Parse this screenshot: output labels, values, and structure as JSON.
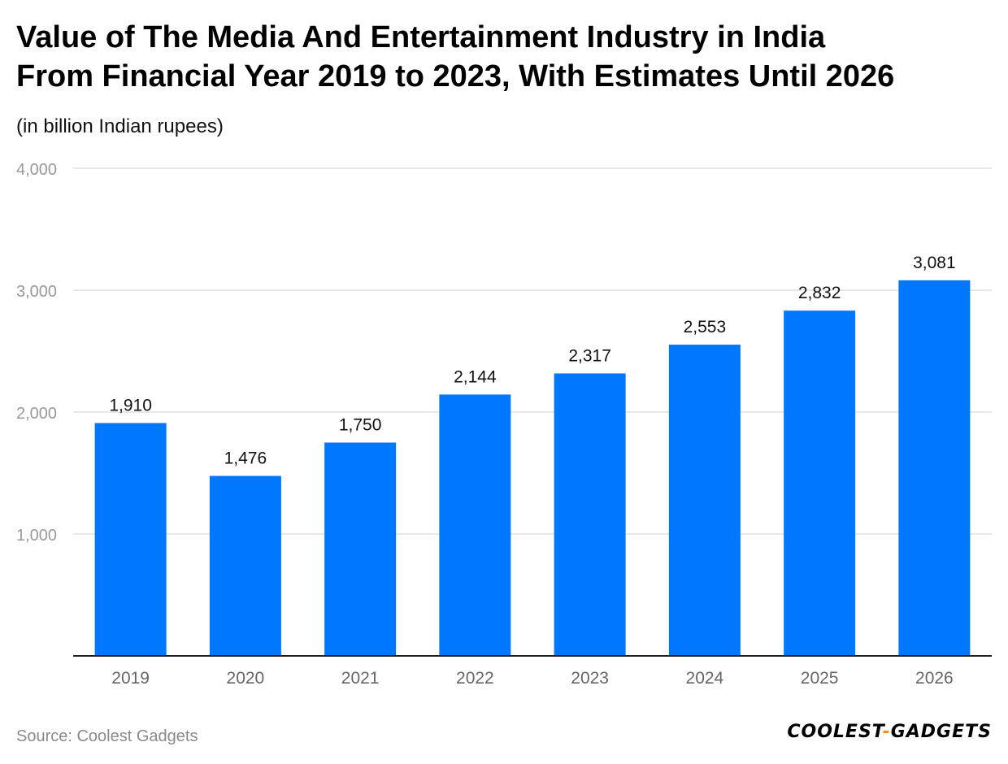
{
  "chart_data": {
    "type": "bar",
    "title_lines": [
      "Value of The Media And Entertainment Industry in India",
      "From Financial Year 2019 to 2023, With Estimates Until 2026"
    ],
    "subtitle": "(in billion Indian rupees)",
    "categories": [
      "2019",
      "2020",
      "2021",
      "2022",
      "2023",
      "2024",
      "2025",
      "2026"
    ],
    "values": [
      1910,
      1476,
      1750,
      2144,
      2317,
      2553,
      2832,
      3081
    ],
    "value_labels": [
      "1,910",
      "1,476",
      "1,750",
      "2,144",
      "2,317",
      "2,553",
      "2,832",
      "3,081"
    ],
    "yticks": [
      1000,
      2000,
      3000,
      4000
    ],
    "ytick_labels": [
      "1,000",
      "2,000",
      "3,000",
      "4,000"
    ],
    "ylim": [
      0,
      4000
    ],
    "xlabel": "",
    "ylabel": "",
    "grid": true,
    "bar_color": "#0077ff",
    "grid_color": "#e0e0e0",
    "axis_color": "#222222",
    "tick_label_color": "#999999",
    "category_label_color": "#666666"
  },
  "footer": {
    "source": "Source: Coolest Gadgets",
    "logo_left": "COOLEST",
    "logo_dash": "-",
    "logo_right": "GADGETS"
  }
}
